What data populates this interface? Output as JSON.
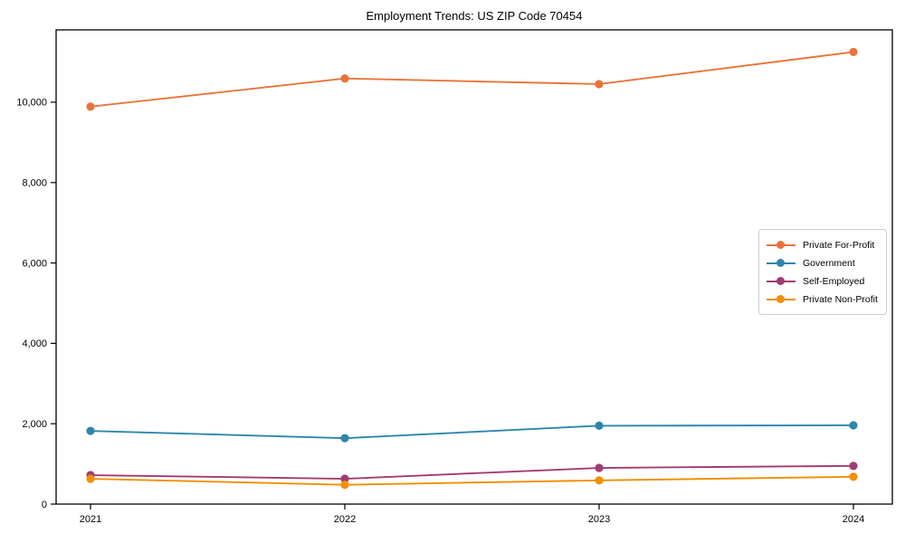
{
  "chart_data": {
    "type": "line",
    "title": "Employment Trends: US ZIP Code 70454",
    "xlabel": "",
    "ylabel": "",
    "x": [
      2021,
      2022,
      2023,
      2024
    ],
    "x_tick_labels": [
      "2021",
      "2022",
      "2023",
      "2024"
    ],
    "y_ticks": [
      0,
      2000,
      4000,
      6000,
      8000,
      10000
    ],
    "y_tick_labels": [
      "0",
      "2,000",
      "4,000",
      "6,000",
      "8,000",
      "10,000"
    ],
    "ylim": [
      0,
      11800
    ],
    "grid": false,
    "legend_position": "center-right",
    "marker": "circle",
    "series": [
      {
        "name": "Private For-Profit",
        "color": "#E8743B",
        "values": [
          9890,
          10590,
          10450,
          11250
        ]
      },
      {
        "name": "Government",
        "color": "#2E86AB",
        "values": [
          1820,
          1640,
          1950,
          1960
        ]
      },
      {
        "name": "Self-Employed",
        "color": "#A23B72",
        "values": [
          720,
          630,
          900,
          950
        ]
      },
      {
        "name": "Private Non-Profit",
        "color": "#F18F01",
        "values": [
          630,
          480,
          590,
          680
        ]
      }
    ],
    "frame_color": "#000000"
  }
}
